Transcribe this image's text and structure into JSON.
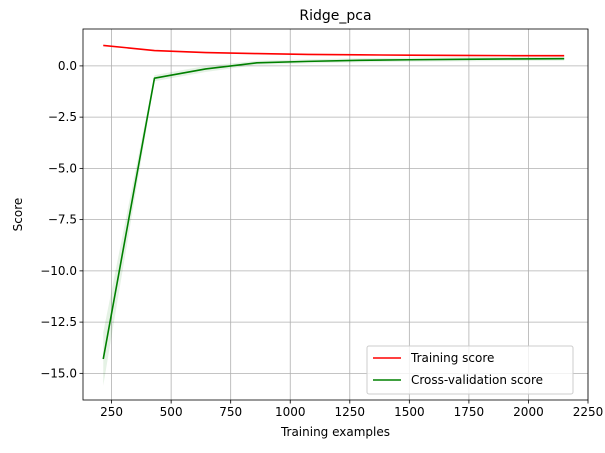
{
  "chart_data": {
    "type": "line",
    "title": "Ridge_pca",
    "xlabel": "Training examples",
    "ylabel": "Score",
    "xlim": [
      130,
      2250
    ],
    "ylim": [
      -16.3,
      1.8
    ],
    "xticks": [
      250,
      500,
      750,
      1000,
      1250,
      1500,
      1750,
      2000,
      2250
    ],
    "yticks": [
      0.0,
      -2.5,
      -5.0,
      -7.5,
      -10.0,
      -12.5,
      -15.0
    ],
    "xtick_labels": [
      "250",
      "500",
      "750",
      "1000",
      "1250",
      "1500",
      "1750",
      "2000",
      "2250"
    ],
    "ytick_labels": [
      "0.0",
      "−2.5",
      "−5.0",
      "−7.5",
      "−10.0",
      "−12.5",
      "−15.0"
    ],
    "grid": true,
    "legend_position": "lower-right",
    "x": [
      215,
      430,
      645,
      860,
      1075,
      1290,
      1505,
      1720,
      1935,
      2150
    ],
    "series": [
      {
        "name": "Training score",
        "color": "#ff0000",
        "values": [
          1.0,
          0.75,
          0.65,
          0.6,
          0.56,
          0.54,
          0.52,
          0.51,
          0.5,
          0.5
        ],
        "band_lower": [
          1.0,
          0.75,
          0.65,
          0.6,
          0.56,
          0.54,
          0.52,
          0.51,
          0.5,
          0.5
        ],
        "band_upper": [
          1.0,
          0.75,
          0.65,
          0.6,
          0.56,
          0.54,
          0.52,
          0.51,
          0.5,
          0.5
        ],
        "band_color": "#ff0000"
      },
      {
        "name": "Cross-validation score",
        "color": "#008000",
        "values": [
          -14.3,
          -0.6,
          -0.15,
          0.15,
          0.22,
          0.27,
          0.3,
          0.32,
          0.34,
          0.35
        ],
        "band_lower": [
          -15.6,
          -0.75,
          -0.3,
          0.05,
          0.12,
          0.17,
          0.2,
          0.22,
          0.24,
          0.25
        ],
        "band_upper": [
          -13.0,
          -0.45,
          -0.0,
          0.25,
          0.32,
          0.37,
          0.4,
          0.42,
          0.44,
          0.45
        ],
        "band_color": "#008000"
      }
    ]
  }
}
